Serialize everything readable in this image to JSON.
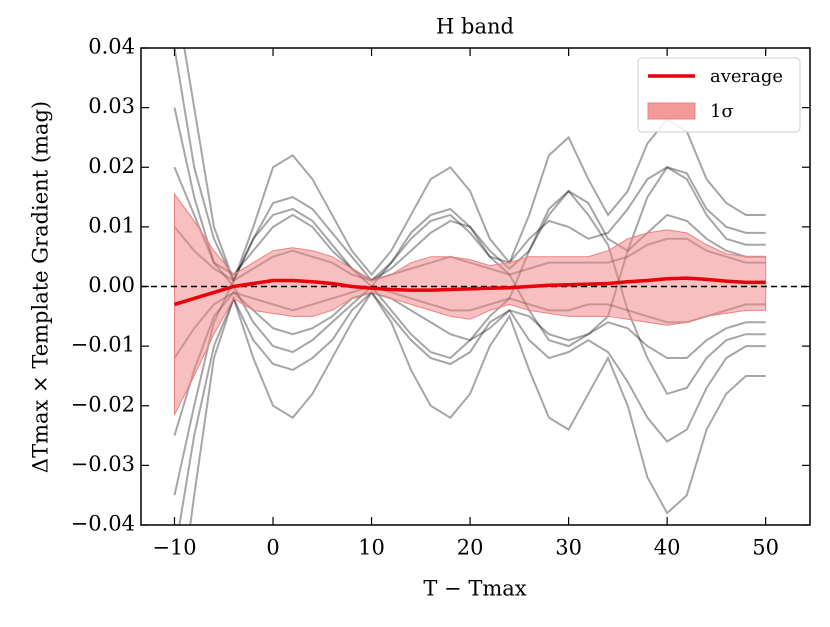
{
  "chart_data": {
    "type": "line",
    "title": "H band",
    "xlabel": "T − Tmax",
    "ylabel": "ΔTmax × Template Gradient (mag)",
    "xlim": [
      -13.4,
      54.5
    ],
    "ylim": [
      -0.04,
      0.04
    ],
    "xticks": [
      {
        "value": -10,
        "label": "−10"
      },
      0,
      10,
      20,
      30,
      40,
      50
    ],
    "yticks": [
      {
        "value": -0.04,
        "label": "−0.04"
      },
      {
        "value": -0.03,
        "label": "−0.03"
      },
      {
        "value": -0.02,
        "label": "−0.02"
      },
      {
        "value": -0.01,
        "label": "−0.01"
      },
      {
        "value": 0,
        "label": "0.00"
      },
      0.01,
      0.02,
      0.03,
      0.04
    ],
    "hline": 0,
    "legend": "upper right",
    "x": [
      -10,
      -8,
      -6,
      -4,
      -2,
      0,
      2,
      4,
      6,
      8,
      10,
      12,
      14,
      16,
      18,
      20,
      22,
      24,
      26,
      28,
      30,
      32,
      34,
      36,
      38,
      40,
      42,
      44,
      46,
      48,
      50
    ],
    "curve_color": "#000000",
    "curves": [
      {
        "values": [
          0.04,
          0.02,
          0.008,
          0.001,
          0.008,
          0.014,
          0.015,
          0.013,
          0.009,
          0.005,
          0.001,
          0.004,
          0.008,
          0.011,
          0.012,
          0.009,
          0.005,
          0.004,
          0.008,
          0.011,
          0.01,
          0.008,
          0.009,
          0.013,
          0.018,
          0.02,
          0.019,
          0.013,
          0.01,
          0.009,
          0.009
        ]
      },
      {
        "values": [
          -0.045,
          -0.025,
          -0.01,
          -0.002,
          -0.009,
          -0.013,
          -0.014,
          -0.012,
          -0.009,
          -0.004,
          -0.001,
          -0.005,
          -0.009,
          -0.012,
          -0.013,
          -0.011,
          -0.006,
          -0.004,
          -0.009,
          -0.012,
          -0.011,
          -0.009,
          -0.011,
          -0.016,
          -0.022,
          -0.026,
          -0.024,
          -0.017,
          -0.012,
          -0.01,
          -0.01
        ]
      },
      {
        "values": [
          0.02,
          0.012,
          0.004,
          0.002,
          0.006,
          0.01,
          0.012,
          0.01,
          0.006,
          0.003,
          0.001,
          0.003,
          0.006,
          0.009,
          0.011,
          0.01,
          0.006,
          0.003,
          0.006,
          0.012,
          0.016,
          0.014,
          0.008,
          0.006,
          0.009,
          0.012,
          0.011,
          0.008,
          0.006,
          0.005,
          0.005
        ]
      },
      {
        "values": [
          -0.025,
          -0.014,
          -0.005,
          -0.001,
          -0.004,
          -0.007,
          -0.008,
          -0.007,
          -0.005,
          -0.002,
          -0.001,
          -0.002,
          -0.004,
          -0.006,
          -0.008,
          -0.009,
          -0.007,
          -0.004,
          -0.005,
          -0.008,
          -0.009,
          -0.008,
          -0.006,
          -0.007,
          -0.01,
          -0.012,
          -0.012,
          -0.009,
          -0.007,
          -0.006,
          -0.006
        ]
      },
      {
        "values": [
          0.05,
          0.03,
          0.01,
          0.001,
          0.01,
          0.02,
          0.022,
          0.018,
          0.012,
          0.006,
          0.002,
          0.006,
          0.012,
          0.018,
          0.02,
          0.016,
          0.008,
          0.004,
          0.012,
          0.022,
          0.025,
          0.018,
          0.012,
          0.016,
          0.024,
          0.028,
          0.026,
          0.018,
          0.014,
          0.012,
          0.012
        ]
      },
      {
        "values": [
          -0.06,
          -0.035,
          -0.012,
          -0.002,
          -0.012,
          -0.02,
          -0.022,
          -0.018,
          -0.012,
          -0.006,
          -0.001,
          -0.006,
          -0.014,
          -0.02,
          -0.022,
          -0.018,
          -0.01,
          -0.005,
          -0.014,
          -0.022,
          -0.024,
          -0.018,
          -0.012,
          -0.02,
          -0.032,
          -0.038,
          -0.035,
          -0.024,
          -0.018,
          -0.015,
          -0.015
        ]
      },
      {
        "values": [
          0.01,
          0.006,
          0.003,
          0.001,
          0.003,
          0.005,
          0.006,
          0.005,
          0.004,
          0.002,
          0.001,
          0.002,
          0.003,
          0.004,
          0.005,
          0.004,
          0.003,
          0.002,
          0.003,
          0.004,
          0.004,
          0.004,
          0.004,
          0.005,
          0.007,
          0.008,
          0.008,
          0.006,
          0.005,
          0.004,
          0.004
        ]
      },
      {
        "values": [
          -0.012,
          -0.007,
          -0.003,
          -0.001,
          -0.002,
          -0.003,
          -0.004,
          -0.003,
          -0.002,
          -0.001,
          0.0,
          -0.001,
          -0.002,
          -0.003,
          -0.004,
          -0.004,
          -0.003,
          -0.002,
          -0.003,
          -0.004,
          -0.004,
          -0.003,
          -0.003,
          -0.004,
          -0.005,
          -0.006,
          -0.006,
          -0.005,
          -0.004,
          -0.003,
          -0.003
        ]
      },
      {
        "values": [
          0.03,
          0.015,
          0.004,
          0.0,
          -0.006,
          -0.01,
          -0.011,
          -0.009,
          -0.006,
          -0.003,
          0.0,
          0.004,
          0.009,
          0.012,
          0.013,
          0.01,
          0.005,
          0.002,
          -0.004,
          -0.009,
          -0.01,
          -0.008,
          -0.005,
          0.006,
          0.015,
          0.02,
          0.018,
          0.012,
          0.008,
          0.007,
          0.007
        ]
      },
      {
        "values": [
          -0.035,
          -0.02,
          -0.006,
          0.001,
          0.008,
          0.012,
          0.013,
          0.011,
          0.007,
          0.003,
          0.0,
          -0.004,
          -0.008,
          -0.011,
          -0.012,
          -0.009,
          -0.005,
          -0.002,
          0.006,
          0.013,
          0.016,
          0.012,
          0.007,
          -0.004,
          -0.012,
          -0.018,
          -0.017,
          -0.012,
          -0.009,
          -0.008,
          -0.008
        ]
      }
    ],
    "band": {
      "name": "1σ",
      "color": "#f08080",
      "upper": [
        0.0155,
        0.011,
        0.006,
        0.002,
        0.004,
        0.006,
        0.0065,
        0.006,
        0.005,
        0.003,
        0.001,
        0.002,
        0.004,
        0.005,
        0.005,
        0.0045,
        0.0035,
        0.004,
        0.005,
        0.005,
        0.005,
        0.005,
        0.006,
        0.008,
        0.009,
        0.0095,
        0.009,
        0.007,
        0.0055,
        0.005,
        0.005
      ],
      "lower": [
        -0.0215,
        -0.015,
        -0.008,
        -0.002,
        -0.004,
        -0.0045,
        -0.005,
        -0.005,
        -0.004,
        -0.002,
        -0.001,
        -0.002,
        -0.003,
        -0.004,
        -0.005,
        -0.0055,
        -0.004,
        -0.003,
        -0.004,
        -0.0045,
        -0.005,
        -0.005,
        -0.005,
        -0.0055,
        -0.006,
        -0.0065,
        -0.006,
        -0.005,
        -0.0045,
        -0.004,
        -0.004
      ]
    },
    "series": [
      {
        "name": "average",
        "color": "#e8000b",
        "values": [
          -0.003,
          -0.002,
          -0.001,
          0.0,
          0.0005,
          0.001,
          0.001,
          0.0008,
          0.0005,
          0.0,
          -0.0003,
          -0.0005,
          -0.0006,
          -0.0006,
          -0.0005,
          -0.0004,
          -0.0003,
          -0.0002,
          0.0,
          0.0002,
          0.0003,
          0.0004,
          0.0005,
          0.0008,
          0.001,
          0.0013,
          0.0014,
          0.0012,
          0.0009,
          0.0007,
          0.0007
        ]
      }
    ]
  }
}
